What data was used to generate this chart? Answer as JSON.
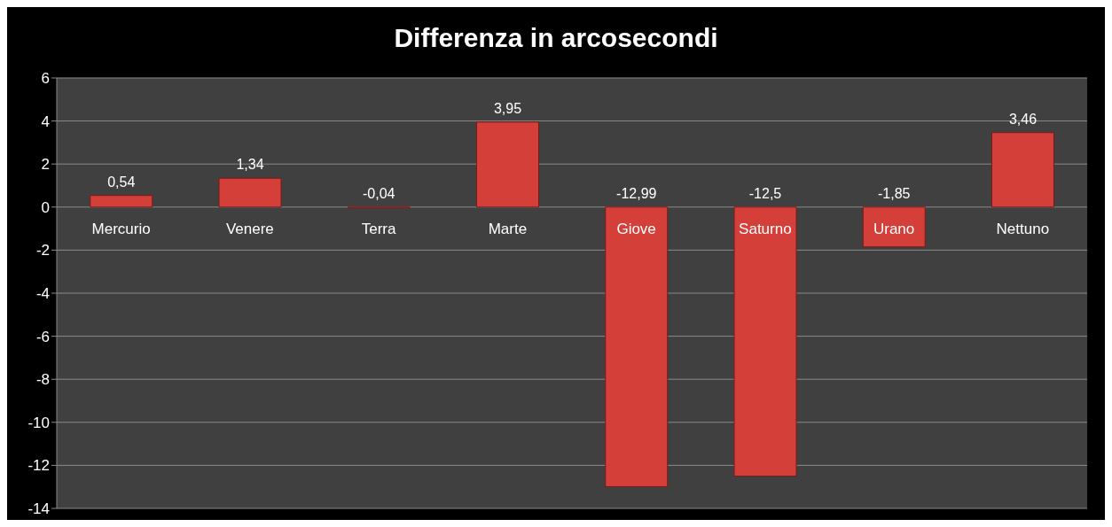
{
  "chart_data": {
    "type": "bar",
    "title": "Differenza in arcosecondi",
    "categories": [
      "Mercurio",
      "Venere",
      "Terra",
      "Marte",
      "Giove",
      "Saturno",
      "Urano",
      "Nettuno"
    ],
    "values": [
      0.54,
      1.34,
      -0.04,
      3.95,
      -12.99,
      -12.5,
      -1.85,
      3.46
    ],
    "value_labels": [
      "0,54",
      "1,34",
      "-0,04",
      "3,95",
      "-12,99",
      "-12,5",
      "-1,85",
      "3,46"
    ],
    "color": "#d43f3a",
    "ylim": [
      -14,
      6
    ],
    "yticks": [
      -14,
      -12,
      -10,
      -8,
      -6,
      -4,
      -2,
      0,
      2,
      4,
      6
    ],
    "grid": "y"
  }
}
